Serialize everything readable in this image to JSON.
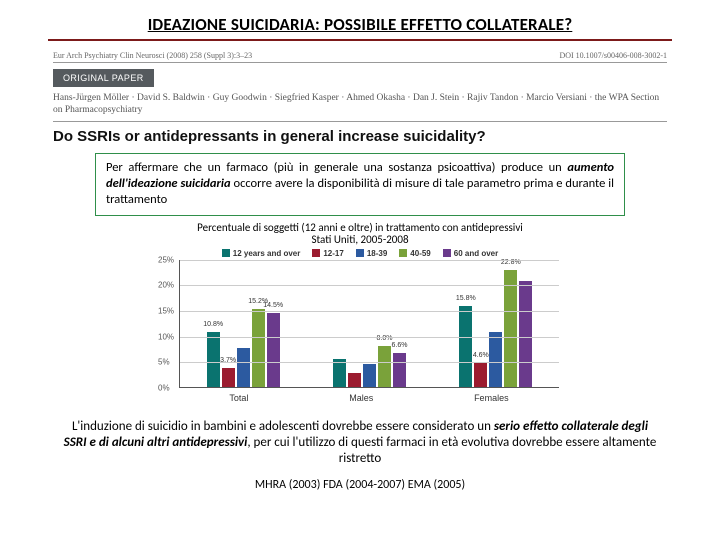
{
  "title": "IDEAZIONE SUICIDARIA: POSSIBILE EFFETTO COLLATERALE?",
  "paper": {
    "journal": "Eur Arch Psychiatry Clin Neurosci (2008) 258 (Suppl 3):3–23",
    "doi": "DOI 10.1007/s00406-008-3002-1",
    "badge": "ORIGINAL PAPER",
    "authors": "Hans-Jürgen Möller · David S. Baldwin · Guy Goodwin · Siegfried Kasper · Ahmed Okasha · Dan J. Stein · Rajiv Tandon · Marcio Versiani · the WPA Section on Pharmacopsychiatry",
    "paper_title": "Do SSRIs or antidepressants in general increase suicidality?"
  },
  "callout": {
    "pre": "Per affermare che un farmaco (più in generale una sostanza psicoattiva) produce un ",
    "emph": "aumento dell'ideazione suicidaria",
    "post": " occorre avere la disponibilità di misure di tale parametro prima e durante il trattamento"
  },
  "chart": {
    "type": "bar",
    "title_l1": "Percentuale di soggetti (12 anni e oltre) in trattamento con antidepressivi",
    "title_l2": "Stati Uniti, 2005-2008",
    "ylim": [
      0,
      25
    ],
    "ytick_step": 5,
    "series": [
      {
        "label": "12 years and over",
        "color": "#0a736f"
      },
      {
        "label": "12-17",
        "color": "#9b1b2f"
      },
      {
        "label": "18-39",
        "color": "#2c5aa0"
      },
      {
        "label": "40-59",
        "color": "#7aa23a"
      },
      {
        "label": "60 and over",
        "color": "#6a3a8c"
      }
    ],
    "groups": [
      {
        "label": "Total",
        "values": [
          10.8,
          3.7,
          7.6,
          15.2,
          14.5
        ]
      },
      {
        "label": "Males",
        "values": [
          5.5,
          2.7,
          4.4,
          8.0,
          6.6
        ]
      },
      {
        "label": "Females",
        "values": [
          15.8,
          4.6,
          10.8,
          22.8,
          20.7
        ]
      }
    ],
    "value_labels": {
      "Total": [
        {
          "i": 0,
          "t": "10.8%"
        },
        {
          "i": 1,
          "t": "3.7%"
        },
        {
          "i": 3,
          "t": "15.2%"
        },
        {
          "i": 4,
          "t": "14.5%"
        }
      ],
      "Males": [
        {
          "i": 3,
          "t": "8.0%"
        },
        {
          "i": 4,
          "t": "6.6%"
        }
      ],
      "Females": [
        {
          "i": 0,
          "t": "15.8%"
        },
        {
          "i": 1,
          "t": "4.6%"
        },
        {
          "i": 3,
          "t": "22.8%"
        }
      ]
    },
    "background_color": "#ffffff",
    "grid_color": "#cccccc"
  },
  "footer": {
    "pre": "L'induzione di suicidio in bambini e adolescenti dovrebbe essere considerato un ",
    "emph": "serio effetto collaterale degli SSRI e di alcuni altri antidepressivi",
    "post": ", per cui l'utilizzo di questi farmaci in età evolutiva dovrebbe essere altamente ristretto"
  },
  "refs": "MHRA (2003)  FDA (2004-2007) EMA (2005)"
}
